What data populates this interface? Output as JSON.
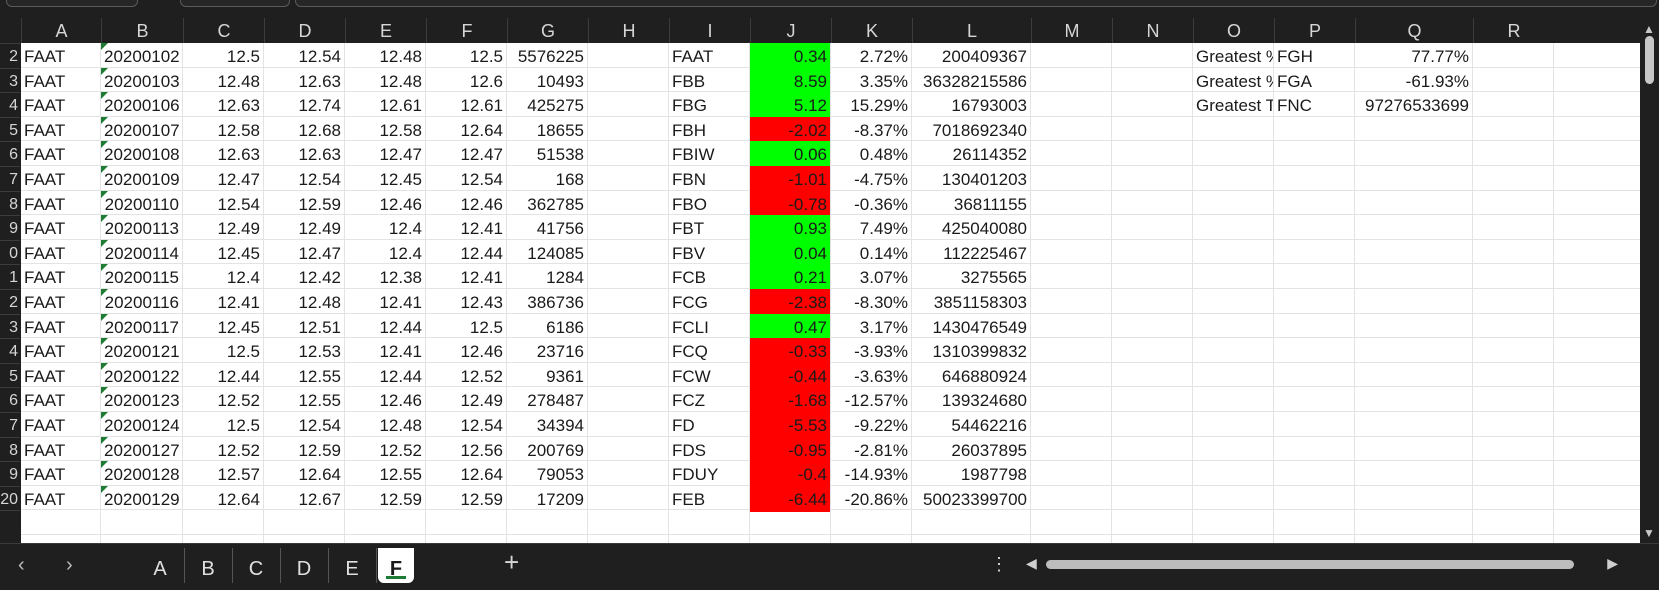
{
  "columns": [
    "A",
    "B",
    "C",
    "D",
    "E",
    "F",
    "G",
    "H",
    "I",
    "J",
    "K",
    "L",
    "M",
    "N",
    "O",
    "P",
    "Q",
    "R"
  ],
  "row_numbers": [
    "2",
    "3",
    "4",
    "5",
    "6",
    "7",
    "8",
    "9",
    "0",
    "1",
    "2",
    "3",
    "4",
    "5",
    "6",
    "7",
    "8",
    "9",
    "20",
    ""
  ],
  "stock_rows": [
    [
      "FAAT",
      "20200102",
      "12.5",
      "12.54",
      "12.48",
      "12.5",
      "5576225"
    ],
    [
      "FAAT",
      "20200103",
      "12.48",
      "12.63",
      "12.48",
      "12.6",
      "10493"
    ],
    [
      "FAAT",
      "20200106",
      "12.63",
      "12.74",
      "12.61",
      "12.61",
      "425275"
    ],
    [
      "FAAT",
      "20200107",
      "12.58",
      "12.68",
      "12.58",
      "12.64",
      "18655"
    ],
    [
      "FAAT",
      "20200108",
      "12.63",
      "12.63",
      "12.47",
      "12.47",
      "51538"
    ],
    [
      "FAAT",
      "20200109",
      "12.47",
      "12.54",
      "12.45",
      "12.54",
      "168"
    ],
    [
      "FAAT",
      "20200110",
      "12.54",
      "12.59",
      "12.46",
      "12.46",
      "362785"
    ],
    [
      "FAAT",
      "20200113",
      "12.49",
      "12.49",
      "12.4",
      "12.41",
      "41756"
    ],
    [
      "FAAT",
      "20200114",
      "12.45",
      "12.47",
      "12.4",
      "12.44",
      "124085"
    ],
    [
      "FAAT",
      "20200115",
      "12.4",
      "12.42",
      "12.38",
      "12.41",
      "1284"
    ],
    [
      "FAAT",
      "20200116",
      "12.41",
      "12.48",
      "12.41",
      "12.43",
      "386736"
    ],
    [
      "FAAT",
      "20200117",
      "12.45",
      "12.51",
      "12.44",
      "12.5",
      "6186"
    ],
    [
      "FAAT",
      "20200121",
      "12.5",
      "12.53",
      "12.41",
      "12.46",
      "23716"
    ],
    [
      "FAAT",
      "20200122",
      "12.44",
      "12.55",
      "12.44",
      "12.52",
      "9361"
    ],
    [
      "FAAT",
      "20200123",
      "12.52",
      "12.55",
      "12.46",
      "12.49",
      "278487"
    ],
    [
      "FAAT",
      "20200124",
      "12.5",
      "12.54",
      "12.48",
      "12.54",
      "34394"
    ],
    [
      "FAAT",
      "20200127",
      "12.52",
      "12.59",
      "12.52",
      "12.56",
      "200769"
    ],
    [
      "FAAT",
      "20200128",
      "12.57",
      "12.64",
      "12.55",
      "12.64",
      "79053"
    ],
    [
      "FAAT",
      "20200129",
      "12.64",
      "12.67",
      "12.59",
      "12.59",
      "17209"
    ]
  ],
  "summary_rows": [
    {
      "ticker": "FAAT",
      "change": "0.34",
      "pct": "2.72%",
      "volume": "200409367",
      "color": "green"
    },
    {
      "ticker": "FBB",
      "change": "8.59",
      "pct": "3.35%",
      "volume": "36328215586",
      "color": "green"
    },
    {
      "ticker": "FBG",
      "change": "5.12",
      "pct": "15.29%",
      "volume": "16793003",
      "color": "green"
    },
    {
      "ticker": "FBH",
      "change": "-2.02",
      "pct": "-8.37%",
      "volume": "7018692340",
      "color": "red"
    },
    {
      "ticker": "FBIW",
      "change": "0.06",
      "pct": "0.48%",
      "volume": "26114352",
      "color": "green"
    },
    {
      "ticker": "FBN",
      "change": "-1.01",
      "pct": "-4.75%",
      "volume": "130401203",
      "color": "red"
    },
    {
      "ticker": "FBO",
      "change": "-0.78",
      "pct": "-0.36%",
      "volume": "36811155",
      "color": "red"
    },
    {
      "ticker": "FBT",
      "change": "0.93",
      "pct": "7.49%",
      "volume": "425040080",
      "color": "green"
    },
    {
      "ticker": "FBV",
      "change": "0.04",
      "pct": "0.14%",
      "volume": "112225467",
      "color": "green"
    },
    {
      "ticker": "FCB",
      "change": "0.21",
      "pct": "3.07%",
      "volume": "3275565",
      "color": "green"
    },
    {
      "ticker": "FCG",
      "change": "-2.38",
      "pct": "-8.30%",
      "volume": "3851158303",
      "color": "red"
    },
    {
      "ticker": "FCLI",
      "change": "0.47",
      "pct": "3.17%",
      "volume": "1430476549",
      "color": "green"
    },
    {
      "ticker": "FCQ",
      "change": "-0.33",
      "pct": "-3.93%",
      "volume": "1310399832",
      "color": "red"
    },
    {
      "ticker": "FCW",
      "change": "-0.44",
      "pct": "-3.63%",
      "volume": "646880924",
      "color": "red"
    },
    {
      "ticker": "FCZ",
      "change": "-1.68",
      "pct": "-12.57%",
      "volume": "139324680",
      "color": "red"
    },
    {
      "ticker": "FD",
      "change": "-5.53",
      "pct": "-9.22%",
      "volume": "54462216",
      "color": "red"
    },
    {
      "ticker": "FDS",
      "change": "-0.95",
      "pct": "-2.81%",
      "volume": "26037895",
      "color": "red"
    },
    {
      "ticker": "FDUY",
      "change": "-0.4",
      "pct": "-14.93%",
      "volume": "1987798",
      "color": "red"
    },
    {
      "ticker": "FEB",
      "change": "-6.44",
      "pct": "-20.86%",
      "volume": "50023399700",
      "color": "red"
    }
  ],
  "greatest": [
    {
      "label": "Greatest %",
      "ticker": "FGH",
      "value": "77.77%"
    },
    {
      "label": "Greatest %",
      "ticker": "FGA",
      "value": "-61.93%"
    },
    {
      "label": "Greatest T",
      "ticker": "FNC",
      "value": "97276533699"
    }
  ],
  "sheet_tabs": [
    "A",
    "B",
    "C",
    "D",
    "E",
    "F"
  ],
  "active_sheet": "F",
  "add_sheet_label": "+",
  "more_options_label": "⋮",
  "nav_prev": "‹",
  "nav_next": "›",
  "colors": {
    "positive": "#00ff00",
    "negative": "#ff0000",
    "accent": "#1e7b34"
  }
}
